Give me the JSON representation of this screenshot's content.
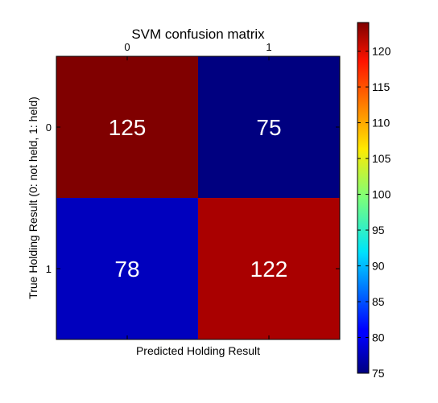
{
  "chart_data": {
    "type": "heatmap",
    "title": "SVM confusion matrix",
    "xlabel": "Predicted Holding Result",
    "ylabel": "True Holding Result (0: not held, 1: held)",
    "x_categories": [
      "0",
      "1"
    ],
    "y_categories": [
      "0",
      "1"
    ],
    "values": [
      [
        125,
        75
      ],
      [
        78,
        122
      ]
    ],
    "colormap": "jet",
    "colorbar": {
      "vmin": 75,
      "vmax": 124,
      "ticks": [
        "75",
        "80",
        "85",
        "90",
        "95",
        "100",
        "105",
        "110",
        "115",
        "120"
      ]
    },
    "x_tick_position": "top",
    "grid": false
  }
}
